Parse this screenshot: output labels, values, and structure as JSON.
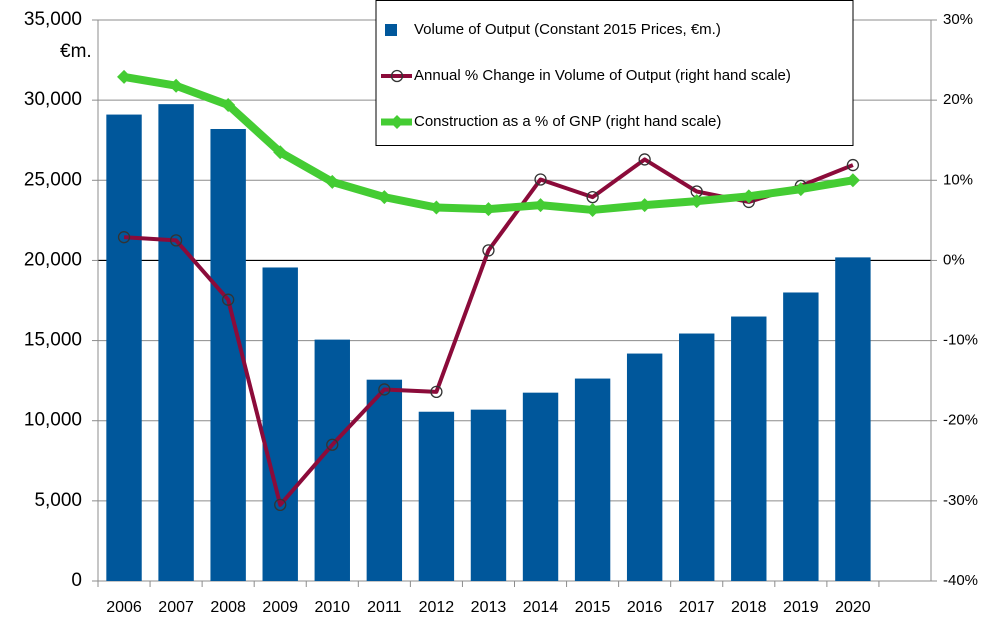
{
  "chart_data": {
    "type": "bar-line",
    "y_unit": "€m.",
    "categories": [
      "2006",
      "2007",
      "2008",
      "2009",
      "2010",
      "2011",
      "2012",
      "2013",
      "2014",
      "2015",
      "2016",
      "2017",
      "2018",
      "2019",
      "2020",
      null
    ],
    "series": [
      {
        "name": "Volume of Output (Constant 2015 Prices, €m.)",
        "type": "bar",
        "color": "#00579b",
        "values": [
          29100,
          29750,
          28200,
          19560,
          15060,
          12560,
          10560,
          10690,
          11750,
          12630,
          14190,
          15440,
          16500,
          18000,
          20190,
          null
        ]
      },
      {
        "name": "Annual % Change in Volume of Output (right hand scale)",
        "type": "line",
        "axis": "y2",
        "color": "#8b0b3a",
        "marker": "circle",
        "values": [
          2.9,
          2.5,
          -4.9,
          -30.5,
          -23,
          -16.1,
          -16.4,
          1.25,
          10.1,
          7.9,
          12.6,
          8.6,
          7.3,
          9.3,
          11.9,
          null
        ]
      },
      {
        "name": "Construction as a % of GNP (right hand scale)",
        "type": "line",
        "axis": "y2",
        "color": "#44cc33",
        "marker": "diamond",
        "values": [
          22.9,
          21.8,
          19.4,
          13.5,
          9.8,
          7.9,
          6.6,
          6.4,
          6.9,
          6.3,
          6.9,
          7.4,
          8.0,
          8.9,
          10.0,
          null
        ]
      }
    ],
    "ylim": [
      0,
      35000
    ],
    "yticks": [
      0,
      {
        "value": 5000,
        "label": "5,000"
      },
      {
        "value": 10000,
        "label": "10,000"
      },
      {
        "value": 15000,
        "label": "15,000"
      },
      {
        "value": 20000,
        "label": "20,000"
      },
      {
        "value": 25000,
        "label": "25,000"
      },
      {
        "value": 30000,
        "label": "30,000"
      },
      {
        "value": 35000,
        "label": "35,000"
      }
    ],
    "y2lim": [
      -40,
      30
    ],
    "y2ticks": [
      {
        "value": -40,
        "label": "-40%"
      },
      {
        "value": -30,
        "label": "-30%"
      },
      {
        "value": -20,
        "label": "-20%"
      },
      {
        "value": -10,
        "label": "-10%"
      },
      {
        "value": 0,
        "label": "0%"
      },
      {
        "value": 10,
        "label": "10%"
      },
      {
        "value": 20,
        "label": "20%"
      },
      {
        "value": 30,
        "label": "30%"
      }
    ],
    "grid": true
  }
}
